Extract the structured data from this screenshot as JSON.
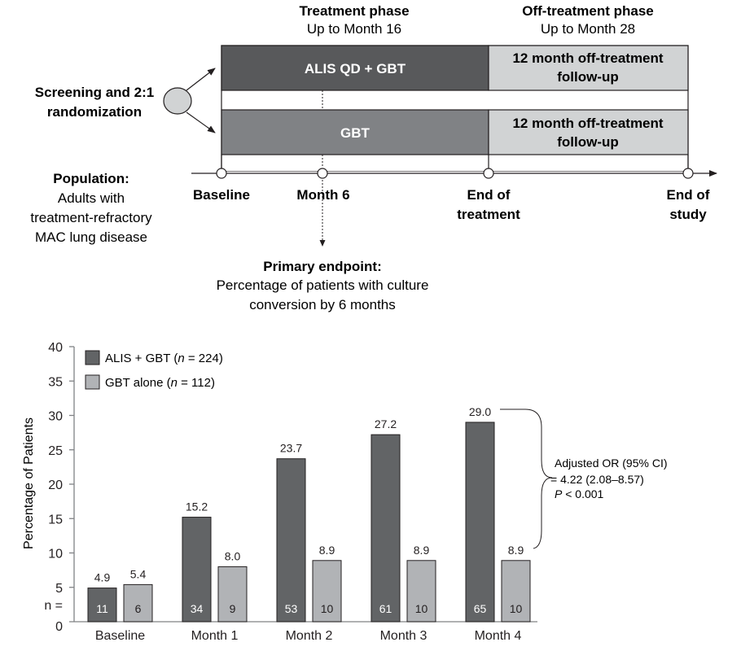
{
  "diagram": {
    "phases": [
      {
        "title": "Treatment phase",
        "subtitle": "Up to Month 16"
      },
      {
        "title": "Off-treatment phase",
        "subtitle": "Up to Month 28"
      }
    ],
    "screening_label": [
      "Screening and 2:1",
      "randomization"
    ],
    "arms": [
      {
        "treatment_label": "ALIS QD + GBT",
        "followup_label": [
          "12 month off-treatment",
          "follow-up"
        ],
        "color": "#58595b"
      },
      {
        "treatment_label": "GBT",
        "followup_label": [
          "12 month off-treatment",
          "follow-up"
        ],
        "color": "#808285"
      }
    ],
    "followup_color": "#d1d3d4",
    "timepoints": [
      {
        "label": [
          "Baseline"
        ]
      },
      {
        "label": [
          "Month 6"
        ]
      },
      {
        "label": [
          "End of",
          "treatment"
        ]
      },
      {
        "label": [
          "End of",
          "study"
        ]
      }
    ],
    "population": {
      "title": "Population:",
      "lines": [
        "Adults with",
        "treatment-refractory",
        "MAC lung disease"
      ]
    },
    "primary_endpoint": {
      "title": "Primary endpoint:",
      "lines": [
        "Percentage of patients with culture",
        "conversion by 6 months"
      ]
    }
  },
  "chart_data": {
    "type": "bar",
    "title": "",
    "xlabel": "",
    "ylabel": "Percentage of Patients",
    "ylim": [
      0,
      40
    ],
    "yticks": [
      0,
      5,
      10,
      15,
      20,
      25,
      30,
      35,
      40
    ],
    "n_row_label": "n =",
    "categories": [
      "Baseline",
      "Month 1",
      "Month 2",
      "Month 3",
      "Month 4"
    ],
    "series": [
      {
        "name": "ALIS + GBT",
        "legend_n": "n = 224",
        "color": "#626466",
        "values": [
          4.9,
          15.2,
          23.7,
          27.2,
          29.0
        ],
        "labels": [
          "4.9",
          "15.2",
          "23.7",
          "27.2",
          "29.0"
        ],
        "n": [
          11,
          34,
          53,
          61,
          65
        ]
      },
      {
        "name": "GBT alone",
        "legend_n": "n = 112",
        "color": "#b1b3b6",
        "values": [
          5.4,
          8.0,
          8.9,
          8.9,
          8.9
        ],
        "labels": [
          "5.4",
          "8.0",
          "8.9",
          "8.9",
          "8.9"
        ],
        "n": [
          6,
          9,
          10,
          10,
          10
        ]
      }
    ],
    "legend": {
      "placement": "top-left"
    },
    "grid": false,
    "annotation": {
      "lines": [
        "Adjusted OR (95% CI)",
        "= 4.22 (2.08–8.57)",
        "P < 0.001"
      ],
      "italic_prefix": "P"
    }
  }
}
